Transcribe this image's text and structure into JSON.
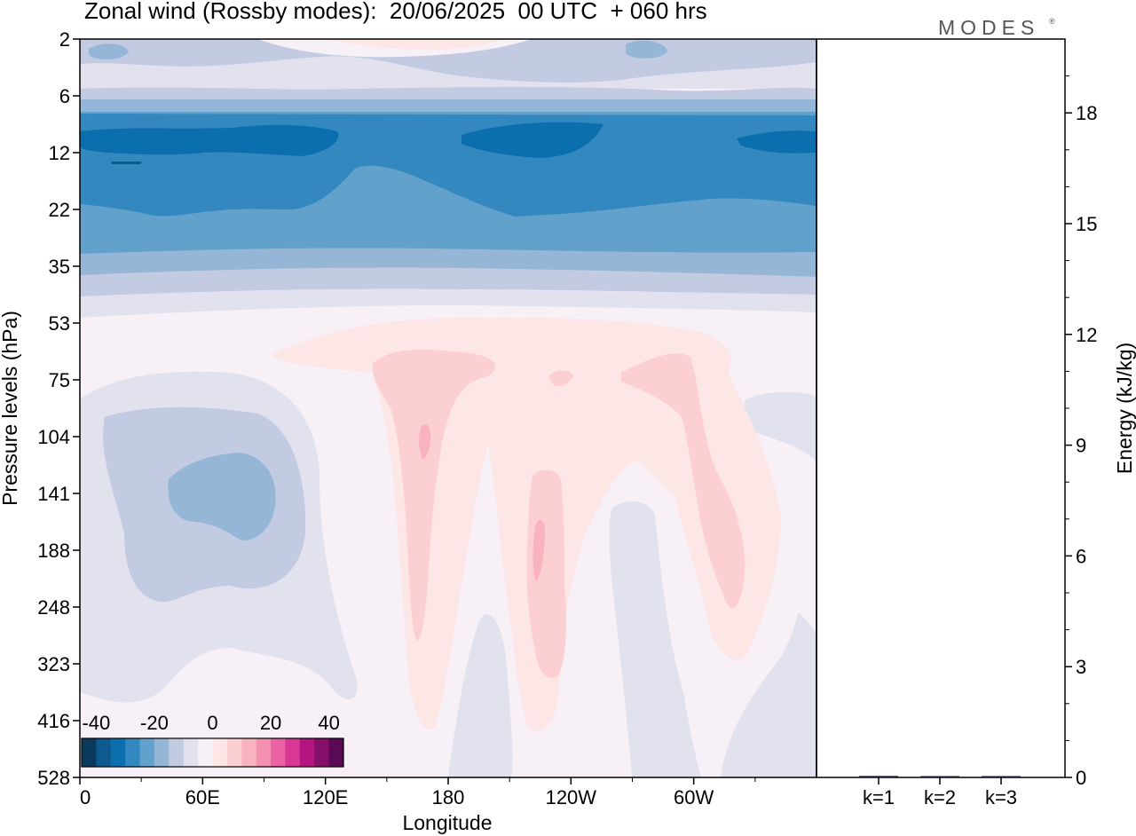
{
  "title": "Zonal wind (Rossby modes):  20/06/2025  00 UTC  + 060 hrs",
  "logo": "MODES",
  "logo_mark": "®",
  "chart_data": [
    {
      "type": "heatmap",
      "title": "Zonal wind (Rossby modes):  20/06/2025  00 UTC  + 060 hrs",
      "xlabel": "Longitude",
      "ylabel": "Pressure levels (hPa)",
      "x_ticks": [
        "0",
        "60E",
        "120E",
        "180",
        "120W",
        "60W"
      ],
      "x_tick_values": [
        0,
        60,
        120,
        180,
        240,
        300
      ],
      "xlim": [
        0,
        360
      ],
      "y_ticks": [
        2,
        6,
        12,
        22,
        35,
        53,
        75,
        104,
        141,
        188,
        248,
        323,
        416,
        528
      ],
      "y_axis": "pressure levels (hPa), top to bottom",
      "colorbar": {
        "tick_labels": [
          "-40",
          "-20",
          "0",
          "20",
          "40"
        ],
        "tick_values": [
          -40,
          -20,
          0,
          20,
          40
        ],
        "levels": [
          -45,
          -40,
          -35,
          -30,
          -25,
          -20,
          -15,
          -10,
          -5,
          0,
          5,
          10,
          15,
          20,
          25,
          30,
          35,
          40,
          45
        ],
        "colors": [
          "#0a3a5c",
          "#0d5a8f",
          "#0b6fae",
          "#3389bf",
          "#62a1cb",
          "#95b6d6",
          "#c2cbe2",
          "#e2e2ef",
          "#f7f0f6",
          "#fde7e6",
          "#fcd0d2",
          "#f9b3c0",
          "#f38fb1",
          "#ea62a4",
          "#d93795",
          "#b5157f",
          "#861069",
          "#5a0a55"
        ]
      },
      "zones": [
        {
          "level": "2-6",
          "wind": -5,
          "note": "weak easterly, near-zero top centre"
        },
        {
          "level": "8",
          "wind": -10
        },
        {
          "level": "10-12",
          "wind": -35,
          "note": "strongest easterly core"
        },
        {
          "level": "14-22",
          "wind": -30
        },
        {
          "level": "24-35",
          "wind": -20
        },
        {
          "level": "40-53",
          "wind": -5
        },
        {
          "level": "53-528",
          "wind": 0,
          "note": "pink westerly plumes near 165E, 120W, 60W; bluish minimum near 60E at 141 hPa"
        }
      ]
    },
    {
      "type": "bar",
      "ylabel": "Energy (kJ/kg)",
      "categories": [
        "k=1",
        "k=2",
        "k=3"
      ],
      "values": [
        0.04,
        0.03,
        0.02
      ],
      "ylim": [
        0,
        20
      ],
      "y_ticks": [
        0,
        3,
        6,
        9,
        12,
        15,
        18
      ]
    }
  ]
}
